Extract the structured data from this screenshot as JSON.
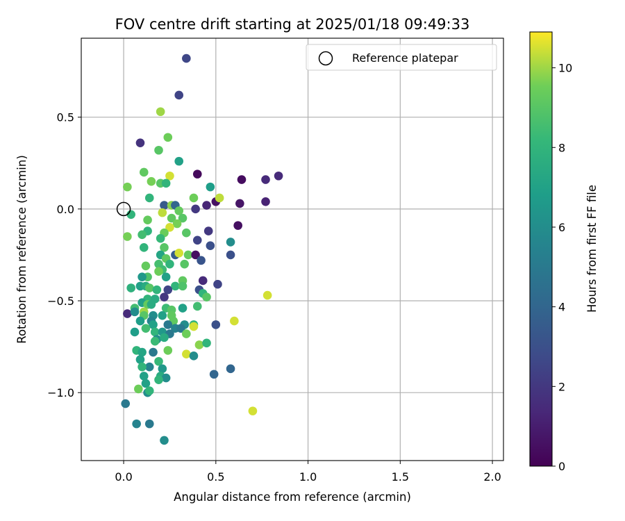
{
  "chart_data": {
    "type": "scatter",
    "title": "FOV centre drift starting at 2025/01/18 09:49:33",
    "xlabel": "Angular distance from reference (arcmin)",
    "ylabel": "Rotation from reference (arcmin)",
    "xlim": [
      -0.23,
      2.06
    ],
    "ylim": [
      -1.37,
      0.93
    ],
    "xticks": [
      0.0,
      0.5,
      1.0,
      1.5,
      2.0
    ],
    "xtick_labels": [
      "0.0",
      "0.5",
      "1.0",
      "1.5",
      "2.0"
    ],
    "yticks": [
      -1.0,
      -0.5,
      0.0,
      0.5
    ],
    "ytick_labels": [
      "−1.0",
      "−0.5",
      "0.0",
      "0.5"
    ],
    "grid": true,
    "legend": {
      "location": "top-right",
      "entries": [
        "Reference platepar"
      ]
    },
    "reference_point": {
      "x": 0.0,
      "y": 0.0,
      "marker": "open-circle"
    },
    "colorbar": {
      "label": "Hours from first FF file",
      "colormap": "viridis",
      "range": [
        0,
        10.9
      ],
      "ticks": [
        0,
        2,
        4,
        6,
        8,
        10
      ],
      "tick_labels": [
        "0",
        "2",
        "4",
        "6",
        "8",
        "10"
      ]
    },
    "series": [
      {
        "points": [
          [
            0.34,
            0.82,
            2.6
          ],
          [
            0.3,
            0.62,
            2.5
          ],
          [
            0.2,
            0.53,
            10.0
          ],
          [
            0.24,
            0.39,
            9.5
          ],
          [
            0.09,
            0.36,
            1.8
          ],
          [
            0.19,
            0.32,
            9.0
          ],
          [
            0.3,
            0.26,
            7.0
          ],
          [
            0.11,
            0.2,
            9.2
          ],
          [
            0.25,
            0.18,
            10.5
          ],
          [
            0.4,
            0.19,
            0.3
          ],
          [
            0.84,
            0.18,
            1.5
          ],
          [
            0.77,
            0.16,
            1.5
          ],
          [
            0.64,
            0.16,
            0.4
          ],
          [
            0.15,
            0.15,
            9.6
          ],
          [
            0.2,
            0.14,
            9.0
          ],
          [
            0.23,
            0.14,
            8.0
          ],
          [
            0.47,
            0.12,
            6.8
          ],
          [
            0.02,
            0.12,
            9.6
          ],
          [
            0.14,
            0.06,
            8.0
          ],
          [
            0.38,
            0.06,
            9.5
          ],
          [
            0.5,
            0.04,
            0.6
          ],
          [
            0.52,
            0.06,
            10.3
          ],
          [
            0.63,
            0.03,
            0.7
          ],
          [
            0.77,
            0.04,
            1.2
          ],
          [
            0.22,
            0.02,
            3.5
          ],
          [
            0.26,
            0.02,
            9.8
          ],
          [
            0.28,
            0.02,
            4.0
          ],
          [
            0.3,
            -0.01,
            9.3
          ],
          [
            0.39,
            0.0,
            2.0
          ],
          [
            0.45,
            0.02,
            1.3
          ],
          [
            0.04,
            -0.03,
            8.0
          ],
          [
            0.21,
            -0.02,
            10.3
          ],
          [
            0.26,
            -0.05,
            9.2
          ],
          [
            0.32,
            -0.05,
            9.0
          ],
          [
            0.13,
            -0.06,
            9.3
          ],
          [
            0.29,
            -0.08,
            9.6
          ],
          [
            0.62,
            -0.09,
            0.5
          ],
          [
            0.13,
            -0.12,
            8.0
          ],
          [
            0.25,
            -0.1,
            10.5
          ],
          [
            0.22,
            -0.13,
            9.4
          ],
          [
            0.34,
            -0.13,
            9.0
          ],
          [
            0.46,
            -0.12,
            2.0
          ],
          [
            0.1,
            -0.14,
            8.5
          ],
          [
            0.02,
            -0.15,
            9.6
          ],
          [
            0.2,
            -0.16,
            8.2
          ],
          [
            0.4,
            -0.17,
            2.5
          ],
          [
            0.58,
            -0.18,
            6.0
          ],
          [
            0.47,
            -0.2,
            3.0
          ],
          [
            0.11,
            -0.21,
            8.0
          ],
          [
            0.22,
            -0.21,
            9.0
          ],
          [
            0.2,
            -0.25,
            7.2
          ],
          [
            0.28,
            -0.25,
            3.5
          ],
          [
            0.3,
            -0.24,
            10.5
          ],
          [
            0.35,
            -0.25,
            9.3
          ],
          [
            0.39,
            -0.25,
            0.5
          ],
          [
            0.58,
            -0.25,
            3.0
          ],
          [
            0.23,
            -0.27,
            9.2
          ],
          [
            0.42,
            -0.28,
            3.2
          ],
          [
            0.19,
            -0.3,
            8.6
          ],
          [
            0.25,
            -0.3,
            8.0
          ],
          [
            0.33,
            -0.3,
            9.0
          ],
          [
            0.12,
            -0.31,
            9.3
          ],
          [
            0.21,
            -0.33,
            8.4
          ],
          [
            0.19,
            -0.34,
            9.5
          ],
          [
            0.23,
            -0.37,
            7.0
          ],
          [
            0.13,
            -0.37,
            8.8
          ],
          [
            0.1,
            -0.37,
            6.5
          ],
          [
            0.32,
            -0.39,
            9.2
          ],
          [
            0.43,
            -0.39,
            1.5
          ],
          [
            0.28,
            -0.42,
            8.0
          ],
          [
            0.09,
            -0.42,
            7.0
          ],
          [
            0.12,
            -0.42,
            7.5
          ],
          [
            0.32,
            -0.42,
            8.8
          ],
          [
            0.04,
            -0.43,
            7.8
          ],
          [
            0.14,
            -0.43,
            9.0
          ],
          [
            0.18,
            -0.44,
            8.0
          ],
          [
            0.24,
            -0.44,
            2.5
          ],
          [
            0.41,
            -0.44,
            3.0
          ],
          [
            0.51,
            -0.41,
            2.5
          ],
          [
            0.43,
            -0.46,
            8.0
          ],
          [
            0.45,
            -0.48,
            9.0
          ],
          [
            0.13,
            -0.49,
            8.0
          ],
          [
            0.17,
            -0.49,
            7.5
          ],
          [
            0.22,
            -0.48,
            2.0
          ],
          [
            0.78,
            -0.47,
            10.5
          ],
          [
            0.1,
            -0.51,
            7.0
          ],
          [
            0.13,
            -0.52,
            9.3
          ],
          [
            0.15,
            -0.52,
            7.5
          ],
          [
            0.06,
            -0.54,
            8.5
          ],
          [
            0.23,
            -0.54,
            8.4
          ],
          [
            0.26,
            -0.55,
            9.0
          ],
          [
            0.32,
            -0.54,
            7.0
          ],
          [
            0.4,
            -0.53,
            8.5
          ],
          [
            0.02,
            -0.57,
            1.5
          ],
          [
            0.06,
            -0.56,
            6.0
          ],
          [
            0.11,
            -0.56,
            10.0
          ],
          [
            0.11,
            -0.58,
            9.0
          ],
          [
            0.16,
            -0.58,
            6.0
          ],
          [
            0.21,
            -0.58,
            7.0
          ],
          [
            0.26,
            -0.58,
            9.2
          ],
          [
            0.09,
            -0.61,
            6.8
          ],
          [
            0.15,
            -0.61,
            5.5
          ],
          [
            0.27,
            -0.61,
            9.2
          ],
          [
            0.16,
            -0.63,
            7.0
          ],
          [
            0.24,
            -0.63,
            5.0
          ],
          [
            0.33,
            -0.63,
            6.0
          ],
          [
            0.38,
            -0.63,
            8.0
          ],
          [
            0.5,
            -0.63,
            3.0
          ],
          [
            0.6,
            -0.61,
            10.5
          ],
          [
            0.12,
            -0.65,
            8.5
          ],
          [
            0.28,
            -0.65,
            5.5
          ],
          [
            0.31,
            -0.65,
            5.0
          ],
          [
            0.38,
            -0.64,
            10.5
          ],
          [
            0.06,
            -0.67,
            6.8
          ],
          [
            0.17,
            -0.67,
            8.0
          ],
          [
            0.21,
            -0.67,
            6.5
          ],
          [
            0.25,
            -0.68,
            5.0
          ],
          [
            0.34,
            -0.68,
            9.5
          ],
          [
            0.18,
            -0.71,
            6.0
          ],
          [
            0.22,
            -0.7,
            7.5
          ],
          [
            0.17,
            -0.72,
            8.3
          ],
          [
            0.41,
            -0.74,
            9.8
          ],
          [
            0.45,
            -0.73,
            8.0
          ],
          [
            0.07,
            -0.77,
            8.0
          ],
          [
            0.1,
            -0.78,
            7.2
          ],
          [
            0.16,
            -0.78,
            5.0
          ],
          [
            0.24,
            -0.77,
            9.5
          ],
          [
            0.34,
            -0.79,
            10.5
          ],
          [
            0.38,
            -0.8,
            6.0
          ],
          [
            0.09,
            -0.82,
            7.0
          ],
          [
            0.19,
            -0.83,
            8.2
          ],
          [
            0.14,
            -0.86,
            5.5
          ],
          [
            0.1,
            -0.86,
            8.0
          ],
          [
            0.21,
            -0.87,
            6.5
          ],
          [
            0.49,
            -0.9,
            4.0
          ],
          [
            0.58,
            -0.87,
            4.0
          ],
          [
            0.11,
            -0.91,
            7.0
          ],
          [
            0.2,
            -0.91,
            7.5
          ],
          [
            0.23,
            -0.92,
            6.0
          ],
          [
            0.19,
            -0.93,
            8.0
          ],
          [
            0.12,
            -0.95,
            7.0
          ],
          [
            0.08,
            -0.98,
            9.5
          ],
          [
            0.13,
            -1.0,
            6.0
          ],
          [
            0.14,
            -0.99,
            8.0
          ],
          [
            0.01,
            -1.06,
            5.0
          ],
          [
            0.7,
            -1.1,
            10.5
          ],
          [
            0.07,
            -1.17,
            5.5
          ],
          [
            0.14,
            -1.17,
            5.0
          ],
          [
            0.22,
            -1.26,
            6.0
          ]
        ]
      }
    ]
  }
}
